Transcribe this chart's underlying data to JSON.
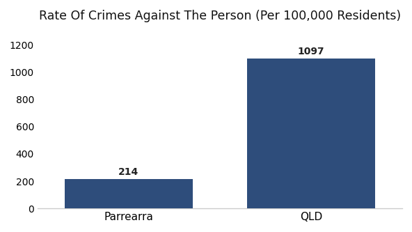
{
  "categories": [
    "Parrearra",
    "QLD"
  ],
  "values": [
    214,
    1097
  ],
  "bar_colors": [
    "#2e4d7b",
    "#2e4d7b"
  ],
  "title": "Rate Of Crimes Against The Person (Per 100,000 Residents)",
  "title_fontsize": 12.5,
  "title_fontweight": "normal",
  "ylim": [
    0,
    1300
  ],
  "yticks": [
    0,
    200,
    400,
    600,
    800,
    1000,
    1200
  ],
  "background_color": "#ffffff",
  "bar_label_fontsize": 10,
  "bar_label_fontweight": "bold",
  "xlabel_fontsize": 11,
  "ytick_fontsize": 10,
  "bar_width": 0.35,
  "bottom_spine_color": "#cccccc"
}
